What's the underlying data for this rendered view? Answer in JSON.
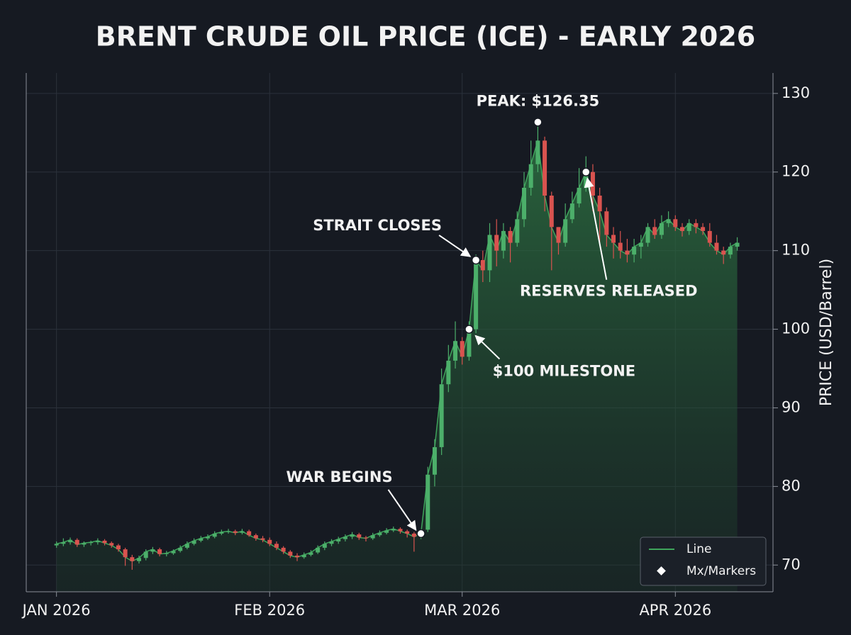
{
  "chart_data": {
    "type": "candlestick",
    "title": "BRENT CRUDE OIL PRICE (ICE) - EARLY 2026",
    "y_label": "PRICE (USD/Barrel)",
    "x": [
      0,
      1,
      2,
      3,
      4,
      5,
      6,
      7,
      8,
      9,
      10,
      11,
      12,
      13,
      14,
      15,
      16,
      17,
      18,
      19,
      20,
      21,
      22,
      23,
      24,
      25,
      26,
      27,
      28,
      29,
      30,
      31,
      32,
      33,
      34,
      35,
      36,
      37,
      38,
      39,
      40,
      41,
      42,
      43,
      44,
      45,
      46,
      47,
      48,
      49,
      50,
      51,
      52,
      53,
      54,
      55,
      56,
      57,
      58,
      59,
      60,
      61,
      62,
      63,
      64,
      65,
      66,
      67,
      68,
      69,
      70,
      71,
      72,
      73,
      74,
      75,
      76,
      77,
      78,
      79,
      80,
      81,
      82,
      83,
      84,
      85,
      86,
      87,
      88,
      89,
      90,
      91,
      92,
      93,
      94,
      95,
      96,
      97,
      98,
      99
    ],
    "open": [
      72.5,
      72.7,
      72.9,
      73.2,
      72.6,
      72.8,
      72.9,
      73.1,
      72.8,
      72.5,
      72.0,
      71.0,
      70.5,
      70.9,
      71.7,
      72.0,
      71.4,
      71.5,
      71.8,
      72.2,
      72.7,
      73.1,
      73.4,
      73.6,
      74.0,
      74.2,
      74.3,
      74.1,
      74.3,
      73.8,
      73.4,
      73.2,
      72.7,
      72.2,
      71.7,
      71.2,
      71.0,
      71.3,
      71.6,
      72.2,
      72.7,
      73.0,
      73.3,
      73.6,
      73.9,
      73.5,
      73.4,
      73.8,
      74.1,
      74.4,
      74.6,
      74.3,
      74.0,
      73.6,
      74.5,
      81.5,
      85,
      93,
      96,
      98.5,
      96.5,
      100,
      108.8,
      107.5,
      112,
      110,
      112.5,
      111,
      114,
      118,
      121,
      124,
      117,
      113,
      111,
      114,
      116,
      118,
      120,
      117,
      115,
      112,
      111,
      110,
      109.5,
      110.5,
      111,
      113,
      112,
      113.5,
      114,
      113,
      112.5,
      113.5,
      113,
      112.5,
      111,
      110,
      109.5,
      110.5
    ],
    "high": [
      73.0,
      73.4,
      73.5,
      73.4,
      73.0,
      73.1,
      73.4,
      73.3,
      73.0,
      72.7,
      72.2,
      71.3,
      71.2,
      72.0,
      72.3,
      72.2,
      71.8,
      72.0,
      72.5,
      73.0,
      73.4,
      73.7,
      73.9,
      74.3,
      74.5,
      74.6,
      74.5,
      74.6,
      74.5,
      74.0,
      73.7,
      73.5,
      73.0,
      72.4,
      71.9,
      71.5,
      71.6,
      71.9,
      72.5,
      73.0,
      73.3,
      73.6,
      73.9,
      74.2,
      74.1,
      73.7,
      74.1,
      74.4,
      74.7,
      74.9,
      74.8,
      74.5,
      74.2,
      74.3,
      82.5,
      86,
      95,
      98,
      101,
      99,
      101,
      109.5,
      110,
      113.5,
      114,
      113.5,
      113,
      115,
      120,
      124,
      126.35,
      124.5,
      117.5,
      113,
      116,
      117.5,
      120.5,
      122,
      121,
      118,
      115.5,
      113,
      112.5,
      111.5,
      111.5,
      112,
      113.5,
      114,
      114.5,
      115,
      114.5,
      113.5,
      114,
      114,
      113.5,
      113.5,
      112,
      110.5,
      111,
      111.7
    ],
    "low": [
      72.2,
      72.4,
      72.6,
      72.3,
      72.3,
      72.5,
      72.6,
      72.5,
      72.2,
      71.7,
      69.9,
      69.4,
      70.2,
      70.6,
      71.4,
      71.1,
      71.1,
      71.3,
      71.6,
      72.0,
      72.5,
      72.9,
      73.2,
      73.4,
      73.8,
      74.0,
      73.8,
      73.9,
      73.6,
      73.1,
      72.9,
      72.4,
      71.9,
      71.4,
      70.9,
      70.5,
      70.8,
      71.1,
      71.4,
      71.9,
      72.4,
      72.7,
      73.0,
      73.3,
      73.2,
      73.0,
      73.2,
      73.6,
      73.9,
      74.2,
      74.0,
      73.5,
      71.7,
      73.3,
      74.2,
      80,
      84,
      92,
      95,
      95.5,
      96,
      99.5,
      106,
      106,
      108,
      109,
      108.5,
      110.5,
      113,
      117,
      120,
      115,
      107.5,
      109.5,
      110.5,
      113.5,
      115.5,
      117.5,
      115,
      111,
      110.5,
      109,
      109,
      108.5,
      108.5,
      109,
      110.5,
      111.5,
      111.5,
      113,
      112.5,
      111.8,
      112,
      112.2,
      112,
      110.5,
      109.5,
      108.3,
      109,
      110
    ],
    "close": [
      72.7,
      72.9,
      73.2,
      72.6,
      72.8,
      72.9,
      73.1,
      72.8,
      72.5,
      72.0,
      71.0,
      70.5,
      70.9,
      71.7,
      72.0,
      71.4,
      71.5,
      71.8,
      72.2,
      72.7,
      73.1,
      73.4,
      73.6,
      74.0,
      74.2,
      74.3,
      74.1,
      74.3,
      73.8,
      73.4,
      73.2,
      72.7,
      72.2,
      71.7,
      71.2,
      71.0,
      71.3,
      71.6,
      72.2,
      72.7,
      73.0,
      73.3,
      73.6,
      73.9,
      73.5,
      73.4,
      73.8,
      74.1,
      74.4,
      74.6,
      74.3,
      74.0,
      73.6,
      74.0,
      81.5,
      85,
      93,
      96,
      98.5,
      96.5,
      100,
      108.8,
      107.5,
      112,
      110,
      112.5,
      111,
      114,
      118,
      121,
      124,
      117,
      113,
      111,
      114,
      116,
      118,
      120,
      117,
      115,
      112,
      111,
      110,
      109.5,
      110.5,
      111,
      113,
      112,
      113.5,
      114,
      113,
      112.5,
      113.5,
      113,
      112.5,
      111,
      110,
      109.5,
      110.5,
      111
    ],
    "up_color": "#4caf6a",
    "down_color": "#d9534f",
    "line_color": "#3fa55c",
    "xlim": [
      -4.4,
      104.2
    ],
    "xticks": [
      {
        "value": 0,
        "label": "JAN 2026"
      },
      {
        "value": 31,
        "label": "FEB 2026"
      },
      {
        "value": 59,
        "label": "MAR 2026"
      },
      {
        "value": 90,
        "label": "APR 2026"
      }
    ],
    "ylim": [
      66.6,
      132.6
    ],
    "yticks": [
      70,
      80,
      90,
      100,
      110,
      120,
      130
    ],
    "grid": true,
    "legend": {
      "position": "lower right",
      "entries": [
        "Line",
        "Mx/Markers"
      ]
    },
    "annotations": [
      {
        "text": "WAR BEGINS",
        "x": 53,
        "y": 74
      },
      {
        "text": "$100 MILESTONE",
        "x": 60,
        "y": 100
      },
      {
        "text": "STRAIT CLOSES",
        "x": 61,
        "y": 108.8
      },
      {
        "text": "PEAK: $126.35",
        "x": 70,
        "y": 126.35
      },
      {
        "text": "RESERVES RELEASED",
        "x": 77,
        "y": 120
      }
    ]
  }
}
